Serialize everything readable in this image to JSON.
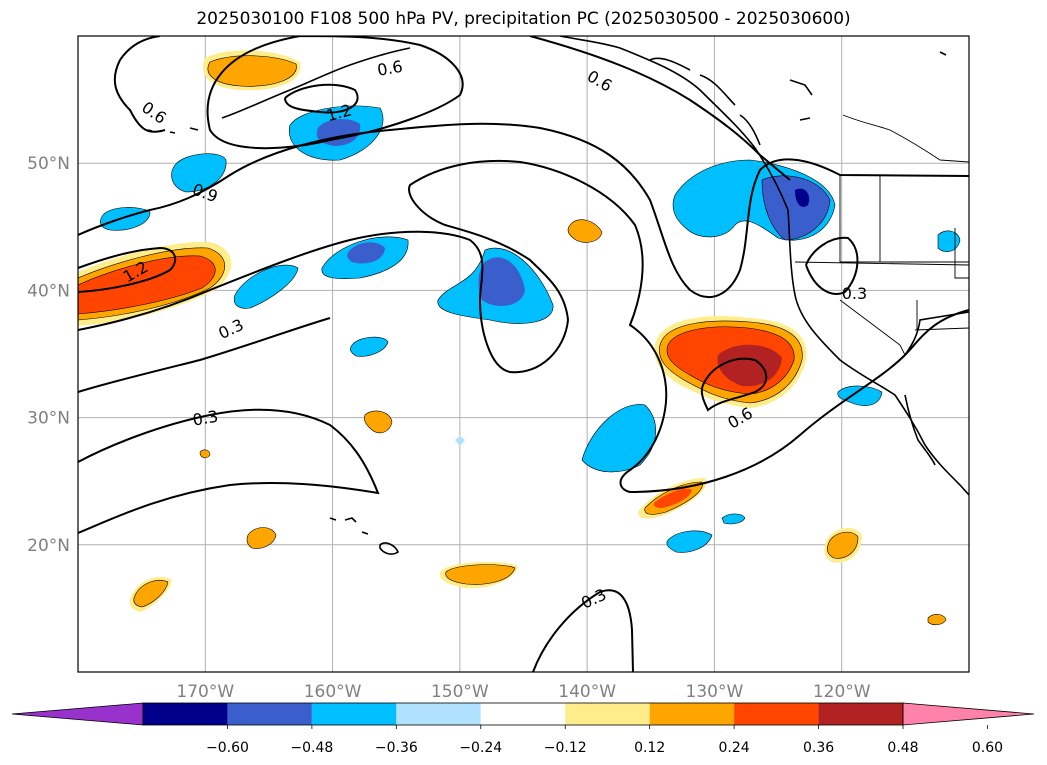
{
  "title": "2025030100 F108 500 hPa PV, precipitation PC (2025030500 - 2025030600)",
  "map": {
    "lon_range": [
      -180,
      -110
    ],
    "lat_range": [
      10,
      60
    ],
    "lon_ticks": [
      {
        "value": -170,
        "label": "170°W"
      },
      {
        "value": -160,
        "label": "160°W"
      },
      {
        "value": -150,
        "label": "150°W"
      },
      {
        "value": -140,
        "label": "140°W"
      },
      {
        "value": -130,
        "label": "130°W"
      },
      {
        "value": -120,
        "label": "120°W"
      }
    ],
    "lat_ticks": [
      {
        "value": 20,
        "label": "20°N"
      },
      {
        "value": 30,
        "label": "30°N"
      },
      {
        "value": 40,
        "label": "40°N"
      },
      {
        "value": 50,
        "label": "50°N"
      }
    ],
    "grid": true
  },
  "colorbar": {
    "extend": "both",
    "colors": [
      "#9932cc",
      "#00008b",
      "#3a5fcd",
      "#00bfff",
      "#b0e2ff",
      "#ffffff",
      "#ffec8b",
      "#ffa500",
      "#ff4500",
      "#b22222",
      "#ff82ab"
    ],
    "labels": [
      "−0.60",
      "−0.48",
      "−0.36",
      "−0.24",
      "−0.12",
      "0.12",
      "0.24",
      "0.36",
      "0.48",
      "0.60"
    ]
  },
  "contour_labels": [
    {
      "text": "0.6",
      "lon": -174.0,
      "lat": 54.0,
      "rot": 35
    },
    {
      "text": "0.6",
      "lon": -155.5,
      "lat": 57.5,
      "rot": -10
    },
    {
      "text": "0.6",
      "lon": -139.0,
      "lat": 56.5,
      "rot": 30
    },
    {
      "text": "1.2",
      "lon": -159.5,
      "lat": 54.0,
      "rot": -15
    },
    {
      "text": "0.9",
      "lon": -170.0,
      "lat": 47.7,
      "rot": 20
    },
    {
      "text": "1.2",
      "lon": -175.5,
      "lat": 41.5,
      "rot": -30
    },
    {
      "text": "0.3",
      "lon": -168.0,
      "lat": 37.0,
      "rot": -25
    },
    {
      "text": "0.3",
      "lon": -170.0,
      "lat": 30.0,
      "rot": -10
    },
    {
      "text": "0.3",
      "lon": -119.0,
      "lat": 39.8,
      "rot": 0
    },
    {
      "text": "0.6",
      "lon": -128.0,
      "lat": 30.0,
      "rot": -30
    },
    {
      "text": "0.3",
      "lon": -139.5,
      "lat": 15.8,
      "rot": -25
    }
  ]
}
